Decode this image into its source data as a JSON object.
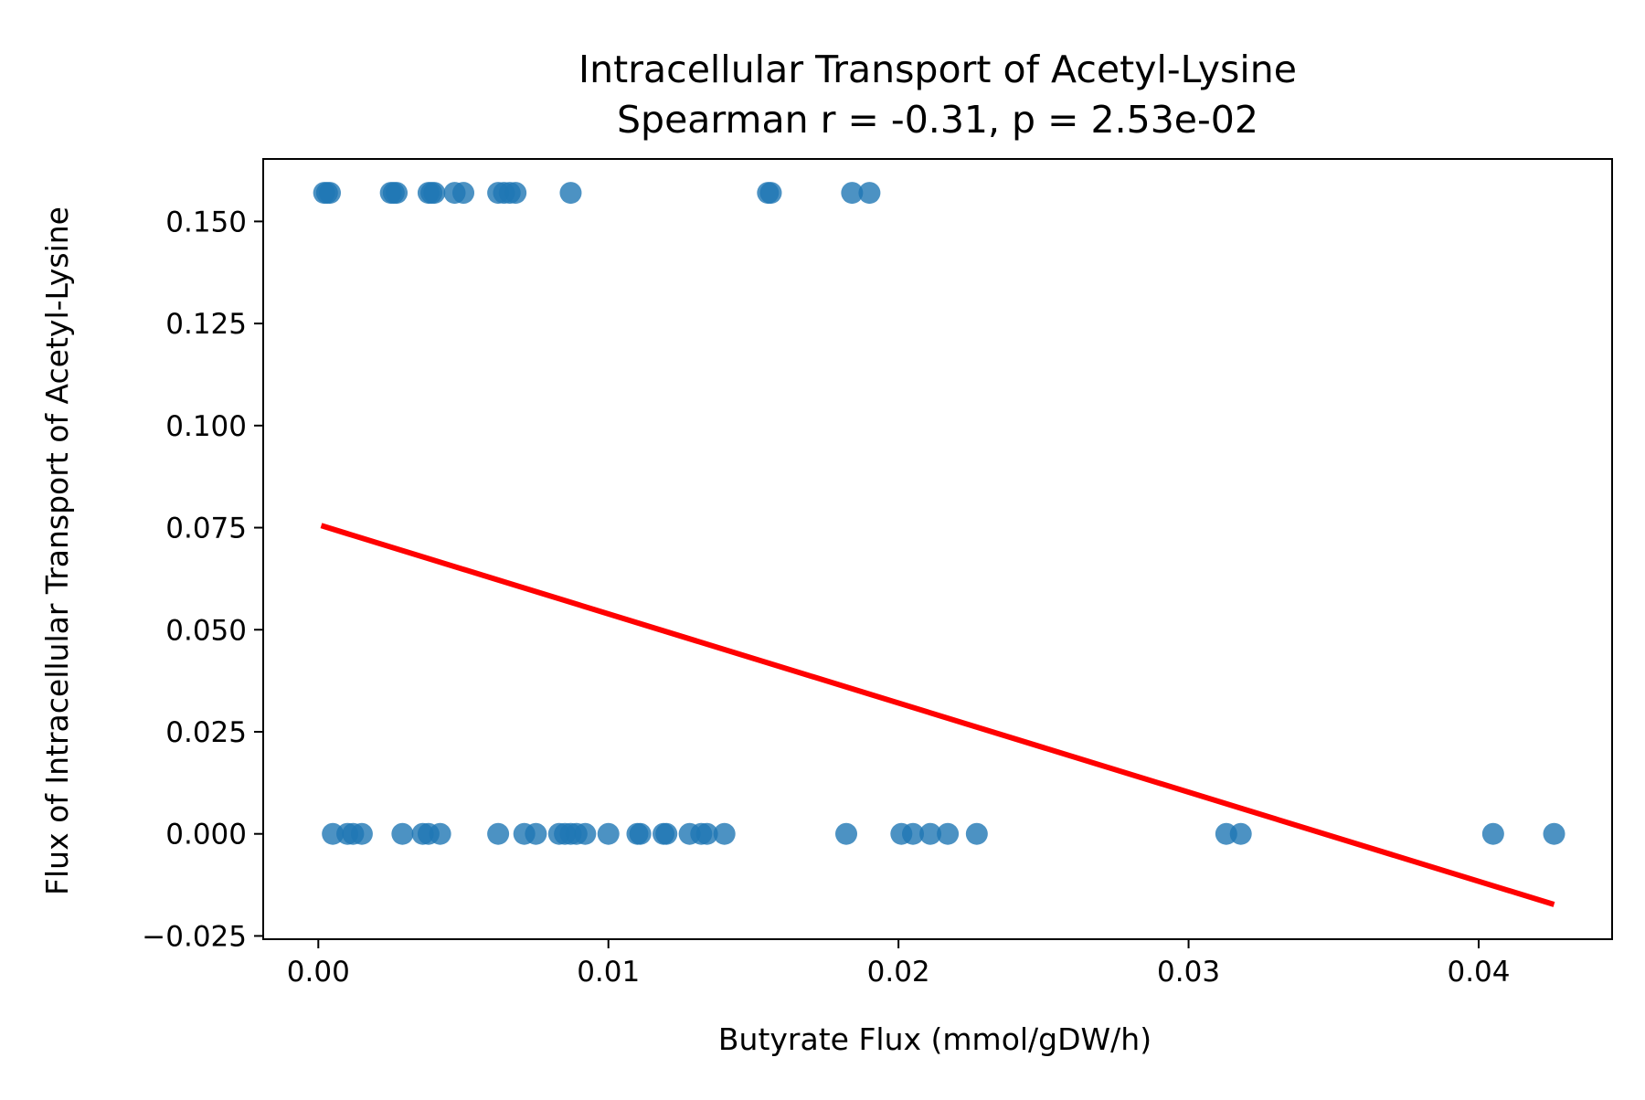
{
  "chart_data": {
    "type": "scatter",
    "title": "Intracellular Transport of Acetyl-Lysine",
    "subtitle": "Spearman r = -0.31, p = 2.53e-02",
    "xlabel": "Butyrate Flux (mmol/gDW/h)",
    "ylabel": "Flux of Intracellular Transport of Acetyl-Lysine",
    "xlim": [
      -0.0019,
      0.0446
    ],
    "ylim": [
      -0.0258,
      0.1653
    ],
    "xticks": [
      0.0,
      0.01,
      0.02,
      0.03,
      0.04
    ],
    "xtick_labels": [
      "0.00",
      "0.01",
      "0.02",
      "0.03",
      "0.04"
    ],
    "yticks": [
      -0.025,
      0.0,
      0.025,
      0.05,
      0.075,
      0.1,
      0.125,
      0.15
    ],
    "ytick_labels": [
      "−0.025",
      "0.000",
      "0.025",
      "0.050",
      "0.075",
      "0.100",
      "0.125",
      "0.150"
    ],
    "grid": false,
    "colors": {
      "points": "#1f77b4",
      "fit_line": "#ff0000"
    },
    "points": [
      {
        "x": 0.0002,
        "y": 0.157
      },
      {
        "x": 0.0003,
        "y": 0.157
      },
      {
        "x": 0.0004,
        "y": 0.157
      },
      {
        "x": 0.0025,
        "y": 0.157
      },
      {
        "x": 0.0026,
        "y": 0.157
      },
      {
        "x": 0.0027,
        "y": 0.157
      },
      {
        "x": 0.0038,
        "y": 0.157
      },
      {
        "x": 0.0039,
        "y": 0.157
      },
      {
        "x": 0.004,
        "y": 0.157
      },
      {
        "x": 0.0047,
        "y": 0.157
      },
      {
        "x": 0.005,
        "y": 0.157
      },
      {
        "x": 0.0062,
        "y": 0.157
      },
      {
        "x": 0.0064,
        "y": 0.157
      },
      {
        "x": 0.0066,
        "y": 0.157
      },
      {
        "x": 0.0068,
        "y": 0.157
      },
      {
        "x": 0.0087,
        "y": 0.157
      },
      {
        "x": 0.0155,
        "y": 0.157
      },
      {
        "x": 0.0156,
        "y": 0.157
      },
      {
        "x": 0.0184,
        "y": 0.157
      },
      {
        "x": 0.019,
        "y": 0.157
      },
      {
        "x": 0.0005,
        "y": 0.0
      },
      {
        "x": 0.001,
        "y": 0.0
      },
      {
        "x": 0.0012,
        "y": 0.0
      },
      {
        "x": 0.0015,
        "y": 0.0
      },
      {
        "x": 0.0029,
        "y": 0.0
      },
      {
        "x": 0.0036,
        "y": 0.0
      },
      {
        "x": 0.0038,
        "y": 0.0
      },
      {
        "x": 0.0042,
        "y": 0.0
      },
      {
        "x": 0.0062,
        "y": 0.0
      },
      {
        "x": 0.0071,
        "y": 0.0
      },
      {
        "x": 0.0075,
        "y": 0.0
      },
      {
        "x": 0.0083,
        "y": 0.0
      },
      {
        "x": 0.0085,
        "y": 0.0
      },
      {
        "x": 0.0087,
        "y": 0.0
      },
      {
        "x": 0.0089,
        "y": 0.0
      },
      {
        "x": 0.0092,
        "y": 0.0
      },
      {
        "x": 0.01,
        "y": 0.0
      },
      {
        "x": 0.011,
        "y": 0.0
      },
      {
        "x": 0.0111,
        "y": 0.0
      },
      {
        "x": 0.0119,
        "y": 0.0
      },
      {
        "x": 0.012,
        "y": 0.0
      },
      {
        "x": 0.0128,
        "y": 0.0
      },
      {
        "x": 0.0132,
        "y": 0.0
      },
      {
        "x": 0.0134,
        "y": 0.0
      },
      {
        "x": 0.014,
        "y": 0.0
      },
      {
        "x": 0.0182,
        "y": 0.0
      },
      {
        "x": 0.0201,
        "y": 0.0
      },
      {
        "x": 0.0205,
        "y": 0.0
      },
      {
        "x": 0.0211,
        "y": 0.0
      },
      {
        "x": 0.0217,
        "y": 0.0
      },
      {
        "x": 0.0227,
        "y": 0.0
      },
      {
        "x": 0.0313,
        "y": 0.0
      },
      {
        "x": 0.0318,
        "y": 0.0
      },
      {
        "x": 0.0405,
        "y": 0.0
      },
      {
        "x": 0.0426,
        "y": 0.0
      }
    ],
    "fit_line": {
      "x": [
        0.0001,
        0.0426
      ],
      "y": [
        0.0755,
        -0.0173
      ]
    }
  }
}
